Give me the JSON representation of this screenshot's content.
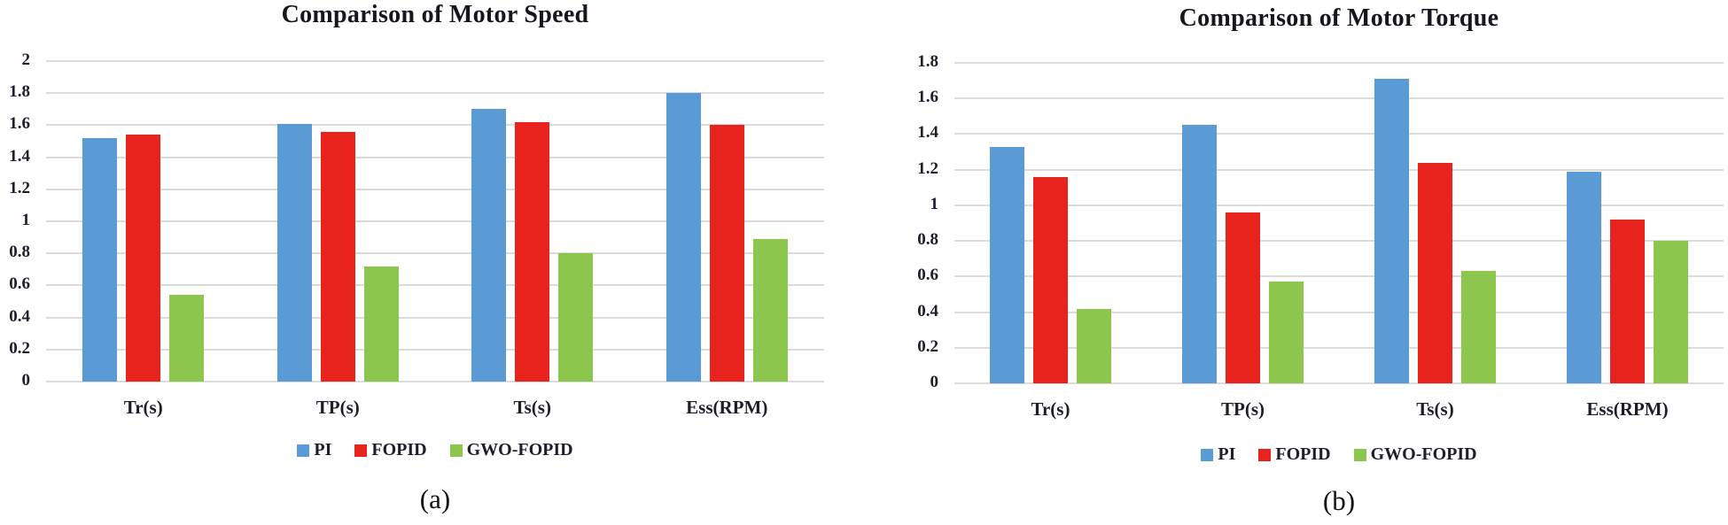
{
  "colors": {
    "background": "#ffffff",
    "gridline": "#dbdbdb",
    "tick_text": "#1d1d2b",
    "title_text": "#16161e",
    "pi_blue": "#5b9bd5",
    "fopid_red": "#e8231d",
    "gwo_green": "#8cc64c"
  },
  "chart_data": [
    {
      "id": "speed",
      "type": "bar",
      "title": "Comparison of Motor Speed",
      "caption": "(a)",
      "categories": [
        "Tr(s)",
        "TP(s)",
        "Ts(s)",
        "Ess(RPM)"
      ],
      "series": [
        {
          "name": "PI",
          "color": "#5b9bd5",
          "values": [
            1.52,
            1.61,
            1.7,
            1.8
          ]
        },
        {
          "name": "FOPID",
          "color": "#e8231d",
          "values": [
            1.54,
            1.56,
            1.62,
            1.6
          ]
        },
        {
          "name": "GWO-FOPID",
          "color": "#8cc64c",
          "values": [
            0.54,
            0.72,
            0.8,
            0.89
          ]
        }
      ],
      "xlabel": "",
      "ylabel": "",
      "ylim": [
        0,
        2
      ],
      "ytick_step": 0.2,
      "ytick_labels": [
        "0",
        "0.2",
        "0.4",
        "0.6",
        "0.8",
        "1",
        "1.2",
        "1.4",
        "1.6",
        "1.8",
        "2"
      ],
      "grid": true,
      "legend_position": "bottom"
    },
    {
      "id": "torque",
      "type": "bar",
      "title": "Comparison of Motor Torque",
      "caption": "(b)",
      "categories": [
        "Tr(s)",
        "TP(s)",
        "Ts(s)",
        "Ess(RPM)"
      ],
      "series": [
        {
          "name": "PI",
          "color": "#5b9bd5",
          "values": [
            1.33,
            1.45,
            1.71,
            1.19
          ]
        },
        {
          "name": "FOPID",
          "color": "#e8231d",
          "values": [
            1.16,
            0.96,
            1.24,
            0.92
          ]
        },
        {
          "name": "GWO-FOPID",
          "color": "#8cc64c",
          "values": [
            0.42,
            0.57,
            0.63,
            0.8
          ]
        }
      ],
      "xlabel": "",
      "ylabel": "",
      "ylim": [
        0,
        1.8
      ],
      "ytick_step": 0.2,
      "ytick_labels": [
        "0",
        "0.2",
        "0.4",
        "0.6",
        "0.8",
        "1",
        "1.2",
        "1.4",
        "1.6",
        "1.8"
      ],
      "grid": true,
      "legend_position": "bottom"
    }
  ]
}
